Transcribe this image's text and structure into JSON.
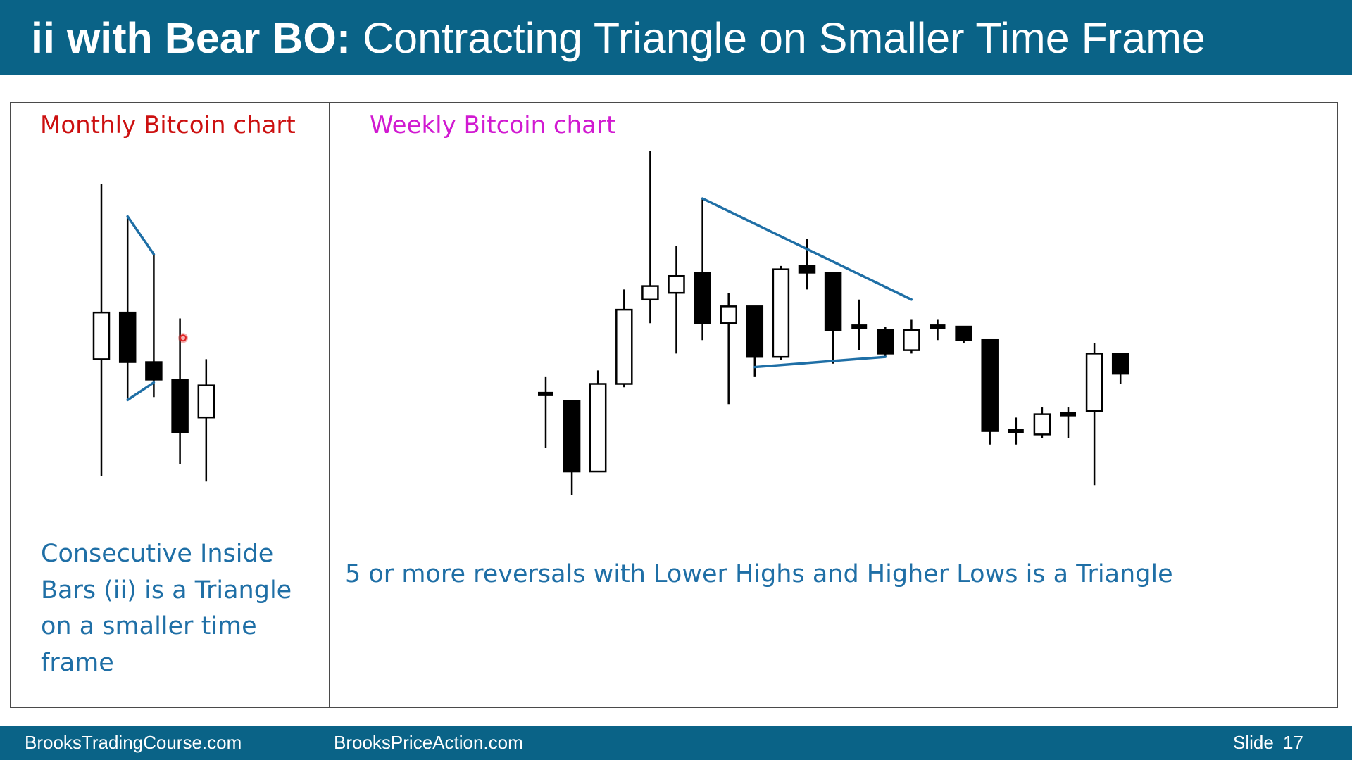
{
  "slide": {
    "title_bold": "ii with Bear BO:",
    "title_rest": " Contracting Triangle on Smaller Time Frame"
  },
  "left_panel": {
    "label": "Monthly Bitcoin chart",
    "label_color": "#cc1010",
    "note": "Consecutive Inside Bars (ii) is a Triangle on a smaller time frame"
  },
  "right_panel": {
    "label": "Weekly Bitcoin chart",
    "label_color": "#d11ad1",
    "note": "5 or more reversals with Lower Highs and Higher Lows is a Triangle"
  },
  "footer": {
    "left_link": "BrooksTradingCourse.com",
    "middle_link": "BrooksPriceAction.com",
    "slide_label": "Slide",
    "slide_number": "17"
  },
  "colors": {
    "header_bg": "#0a6387",
    "trendline": "#1f6fa6",
    "bear_body": "#000000",
    "bull_body": "#ffffff",
    "cursor_dot": "#e02020"
  },
  "cursor": {
    "icon": "pointer-dot-icon",
    "x": 4,
    "y": 48
  },
  "chart_data": [
    {
      "type": "candlestick",
      "title": "Monthly Bitcoin chart",
      "xlabel": "",
      "ylabel": "",
      "ylim": [
        0,
        100
      ],
      "candles": [
        {
          "x": 0,
          "open": 40,
          "high": 100,
          "low": 0,
          "close": 56
        },
        {
          "x": 1,
          "open": 56,
          "high": 89,
          "low": 26,
          "close": 39
        },
        {
          "x": 2,
          "open": 39,
          "high": 76,
          "low": 27,
          "close": 33
        },
        {
          "x": 3,
          "open": 33,
          "high": 54,
          "low": 4,
          "close": 15
        },
        {
          "x": 4,
          "open": 20,
          "high": 40,
          "low": -2,
          "close": 31
        }
      ],
      "trendlines": [
        {
          "points": [
            [
              1,
              89
            ],
            [
              2,
              76
            ]
          ]
        },
        {
          "points": [
            [
              1,
              26
            ],
            [
              2,
              32
            ]
          ]
        }
      ]
    },
    {
      "type": "candlestick",
      "title": "Weekly Bitcoin chart",
      "xlabel": "",
      "ylabel": "",
      "ylim": [
        0,
        100
      ],
      "candles": [
        {
          "x": 0,
          "open": 28,
          "high": 33,
          "low": 12,
          "close": 27
        },
        {
          "x": 1,
          "open": 26,
          "high": 26,
          "low": -2,
          "close": 5
        },
        {
          "x": 2,
          "open": 5,
          "high": 35,
          "low": 5,
          "close": 31
        },
        {
          "x": 3,
          "open": 31,
          "high": 59,
          "low": 30,
          "close": 53
        },
        {
          "x": 4,
          "open": 56,
          "high": 100,
          "low": 49,
          "close": 60
        },
        {
          "x": 5,
          "open": 58,
          "high": 72,
          "low": 40,
          "close": 63
        },
        {
          "x": 6,
          "open": 64,
          "high": 86,
          "low": 44,
          "close": 49
        },
        {
          "x": 7,
          "open": 49,
          "high": 58,
          "low": 25,
          "close": 54
        },
        {
          "x": 8,
          "open": 54,
          "high": 54,
          "low": 33,
          "close": 39
        },
        {
          "x": 9,
          "open": 39,
          "high": 66,
          "low": 38,
          "close": 65
        },
        {
          "x": 10,
          "open": 66,
          "high": 74,
          "low": 59,
          "close": 64
        },
        {
          "x": 11,
          "open": 64,
          "high": 64,
          "low": 37,
          "close": 47
        },
        {
          "x": 12,
          "open": 48,
          "high": 56,
          "low": 41,
          "close": 47
        },
        {
          "x": 13,
          "open": 47,
          "high": 48,
          "low": 39,
          "close": 40
        },
        {
          "x": 14,
          "open": 41,
          "high": 50,
          "low": 40,
          "close": 47
        },
        {
          "x": 15,
          "open": 48,
          "high": 50,
          "low": 44,
          "close": 48
        },
        {
          "x": 16,
          "open": 48,
          "high": 48,
          "low": 43,
          "close": 44
        },
        {
          "x": 17,
          "open": 44,
          "high": 44,
          "low": 13,
          "close": 17
        },
        {
          "x": 18,
          "open": 17,
          "high": 21,
          "low": 13,
          "close": 16
        },
        {
          "x": 19,
          "open": 16,
          "high": 24,
          "low": 15,
          "close": 22
        },
        {
          "x": 20,
          "open": 22,
          "high": 24,
          "low": 15,
          "close": 22
        },
        {
          "x": 21,
          "open": 23,
          "high": 43,
          "low": 1,
          "close": 40
        },
        {
          "x": 22,
          "open": 40,
          "high": 40,
          "low": 31,
          "close": 34
        }
      ],
      "trendlines": [
        {
          "points": [
            [
              6,
              86
            ],
            [
              14,
              56
            ]
          ]
        },
        {
          "points": [
            [
              8,
              36
            ],
            [
              13,
              39
            ]
          ]
        }
      ]
    }
  ]
}
